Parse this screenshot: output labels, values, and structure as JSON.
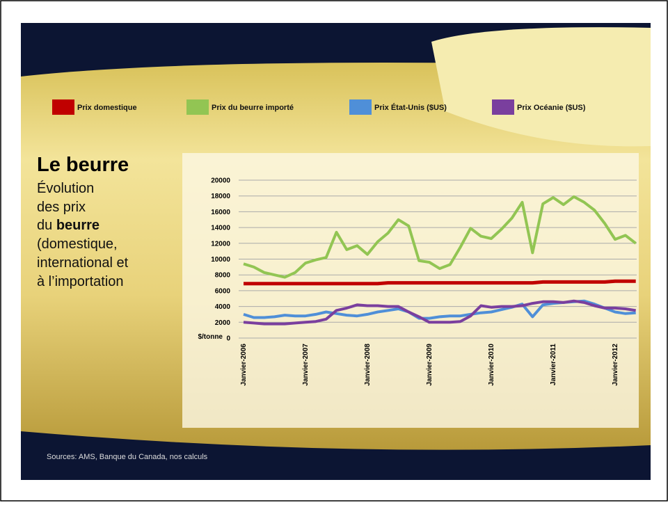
{
  "chart_data": {
    "type": "line",
    "title": "Le beurre",
    "subtitle": [
      "Évolution",
      "des prix",
      "du",
      "beurre",
      "(domestique,",
      "international et",
      "à l’importation"
    ],
    "y_label": "$/tonne",
    "source": "Sources: AMS, Banque du Canada, nos calculs",
    "categories": [
      "Janvier-2006",
      null,
      null,
      null,
      null,
      null,
      "Janvier-2007",
      null,
      null,
      null,
      null,
      null,
      "Janvier-2008",
      null,
      null,
      null,
      null,
      null,
      "Janvier-2009",
      null,
      null,
      null,
      null,
      null,
      "Janvier-2010",
      null,
      null,
      null,
      null,
      null,
      "Janvier-2011",
      null,
      null,
      null,
      null,
      null,
      "Janvier-2012",
      null,
      null
    ],
    "series": [
      {
        "name": "Prix domestique",
        "color": "#c00000",
        "values": [
          6900,
          6900,
          6900,
          6900,
          6900,
          6900,
          6900,
          6900,
          6900,
          6900,
          6900,
          6900,
          6900,
          6900,
          7000,
          7000,
          7000,
          7000,
          7000,
          7000,
          7000,
          7000,
          7000,
          7000,
          7000,
          7000,
          7000,
          7000,
          7000,
          7100,
          7100,
          7100,
          7100,
          7100,
          7100,
          7100,
          7200,
          7200,
          7200
        ]
      },
      {
        "name": "Prix du beurre importé",
        "color": "#92c553",
        "values": [
          9400,
          9000,
          8300,
          8000,
          7700,
          8300,
          9500,
          9900,
          10200,
          13400,
          11200,
          11700,
          10600,
          12200,
          13300,
          15000,
          14200,
          9800,
          9600,
          8800,
          9300,
          11500,
          13900,
          12900,
          12600,
          13800,
          15200,
          17200,
          10800,
          17000,
          17800,
          16900,
          17900,
          17200,
          16200,
          14500,
          12500,
          13000,
          12000
        ]
      },
      {
        "name": "Prix État-Unis ($US)",
        "color": "#4f8fd8",
        "values": [
          3000,
          2600,
          2600,
          2700,
          2900,
          2800,
          2800,
          3000,
          3300,
          3100,
          2900,
          2800,
          3000,
          3300,
          3500,
          3700,
          3300,
          2500,
          2500,
          2700,
          2800,
          2800,
          3000,
          3200,
          3300,
          3600,
          3900,
          4300,
          2700,
          4200,
          4400,
          4500,
          4600,
          4700,
          4300,
          3800,
          3300,
          3100,
          3200
        ]
      },
      {
        "name": "Prix Océanie ($US)",
        "color": "#7a3f9e",
        "values": [
          2000,
          1900,
          1800,
          1800,
          1800,
          1900,
          2000,
          2100,
          2400,
          3500,
          3800,
          4200,
          4100,
          4100,
          4000,
          4000,
          3300,
          2700,
          2000,
          2000,
          2000,
          2100,
          2800,
          4100,
          3900,
          4000,
          4000,
          4100,
          4400,
          4600,
          4600,
          4500,
          4700,
          4500,
          4100,
          3800,
          3800,
          3700,
          3500
        ]
      }
    ],
    "ylim": [
      0,
      20000
    ],
    "yticks": [
      0,
      2000,
      4000,
      6000,
      8000,
      10000,
      12000,
      14000,
      16000,
      18000,
      20000
    ],
    "grid": true
  }
}
